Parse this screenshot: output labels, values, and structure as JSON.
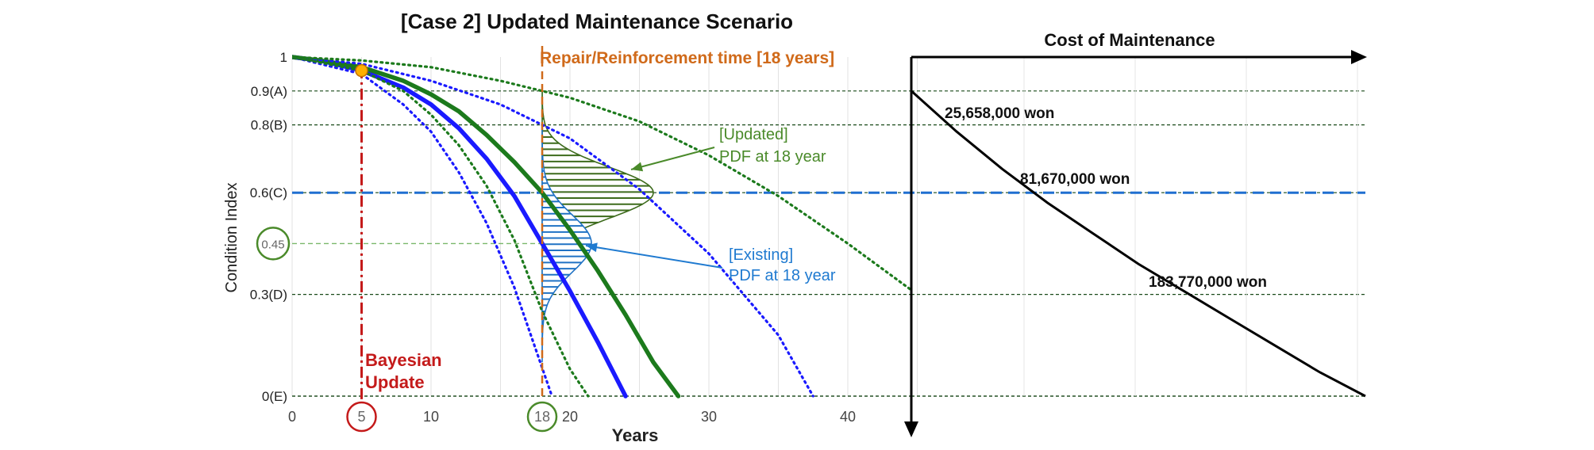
{
  "chart_data": [
    {
      "type": "line",
      "title": "[Case 2] Updated Maintenance Scenario",
      "xlabel": "Years",
      "ylabel": "Condition Index",
      "xlim": [
        0,
        45
      ],
      "ylim": [
        0,
        1
      ],
      "x_ticks": [
        "0",
        "5",
        "10",
        "18",
        "20",
        "30",
        "40"
      ],
      "y_ticks": [
        {
          "label": "1",
          "value": 1.0
        },
        {
          "label": "0.9(A)",
          "value": 0.9
        },
        {
          "label": "0.8(B)",
          "value": 0.8
        },
        {
          "label": "0.6(C)",
          "value": 0.6
        },
        {
          "label": "0.45",
          "value": 0.45
        },
        {
          "label": "0.3(D)",
          "value": 0.3
        },
        {
          "label": "0(E)",
          "value": 0.0
        }
      ],
      "grid": true,
      "series": [
        {
          "style": "solid",
          "color": "#1a1aff",
          "x": [
            0,
            2,
            5,
            8,
            10,
            12,
            14,
            16,
            18,
            20,
            22,
            24
          ],
          "y": [
            1.0,
            0.99,
            0.96,
            0.91,
            0.86,
            0.79,
            0.7,
            0.59,
            0.45,
            0.31,
            0.16,
            0.0
          ]
        },
        {
          "style": "solid",
          "color": "#1c7a1c",
          "x": [
            0,
            2,
            5,
            8,
            10,
            12,
            14,
            16,
            18,
            20,
            22,
            24,
            26,
            27.8
          ],
          "y": [
            1.0,
            0.99,
            0.97,
            0.93,
            0.89,
            0.84,
            0.77,
            0.69,
            0.6,
            0.49,
            0.37,
            0.24,
            0.1,
            0.0
          ]
        },
        {
          "style": "dotted",
          "color": "#1a1aff",
          "x": [
            0,
            5,
            8,
            10,
            12,
            14,
            16,
            18.7
          ],
          "y": [
            1.0,
            0.95,
            0.86,
            0.78,
            0.66,
            0.51,
            0.32,
            0.0
          ]
        },
        {
          "style": "dotted",
          "color": "#1a1aff",
          "x": [
            0,
            5,
            10,
            15,
            18,
            20,
            25,
            30,
            35,
            37.5
          ],
          "y": [
            1.0,
            0.98,
            0.93,
            0.86,
            0.8,
            0.76,
            0.61,
            0.42,
            0.18,
            0.0
          ]
        },
        {
          "style": "dotted",
          "color": "#1c7a1c",
          "x": [
            0,
            5,
            8,
            10,
            12,
            14,
            16,
            18,
            20,
            21.3
          ],
          "y": [
            1.0,
            0.96,
            0.9,
            0.83,
            0.74,
            0.62,
            0.46,
            0.25,
            0.08,
            0.0
          ]
        },
        {
          "style": "dotted",
          "color": "#1c7a1c",
          "x": [
            0,
            5,
            10,
            15,
            18,
            20,
            25,
            30,
            35,
            40,
            45
          ],
          "y": [
            1.0,
            0.99,
            0.97,
            0.93,
            0.9,
            0.88,
            0.81,
            0.71,
            0.59,
            0.45,
            0.3
          ]
        }
      ],
      "threshold": {
        "value": 0.6,
        "color": "#1f6fd0"
      },
      "markers": {
        "bayesian_update_year": 5,
        "repair_year": 18,
        "update_point": {
          "x": 5,
          "y": 0.96
        }
      },
      "annotations": {
        "repair_label": "Repair/Reinforcement time [18 years]",
        "bayesian_line1": "Bayesian",
        "bayesian_line2": "Update",
        "updated_pdf_line1": "[Updated]",
        "updated_pdf_line2": "PDF at 18 year",
        "existing_pdf_line1": "[Existing]",
        "existing_pdf_line2": "PDF at 18 year"
      },
      "pdf_updated": {
        "mean": 0.6,
        "range": [
          0.9,
          0.3
        ]
      },
      "pdf_existing": {
        "mean": 0.45,
        "range": [
          0.8,
          0.1
        ]
      }
    },
    {
      "type": "line",
      "title": "Cost of Maintenance",
      "series": [
        {
          "color": "#000000",
          "x": [
            0,
            0.1,
            0.2,
            0.3,
            0.4,
            0.5,
            0.6,
            0.7,
            0.8,
            0.9,
            1.0
          ],
          "y": [
            0.9,
            0.78,
            0.67,
            0.57,
            0.48,
            0.39,
            0.31,
            0.23,
            0.15,
            0.07,
            0.0
          ]
        }
      ],
      "labels": [
        {
          "text": "25,658,000 won",
          "y": 0.9
        },
        {
          "text": "81,670,000 won",
          "y": 0.6
        },
        {
          "text": "183,770,000 won",
          "y": 0.3
        }
      ]
    }
  ]
}
